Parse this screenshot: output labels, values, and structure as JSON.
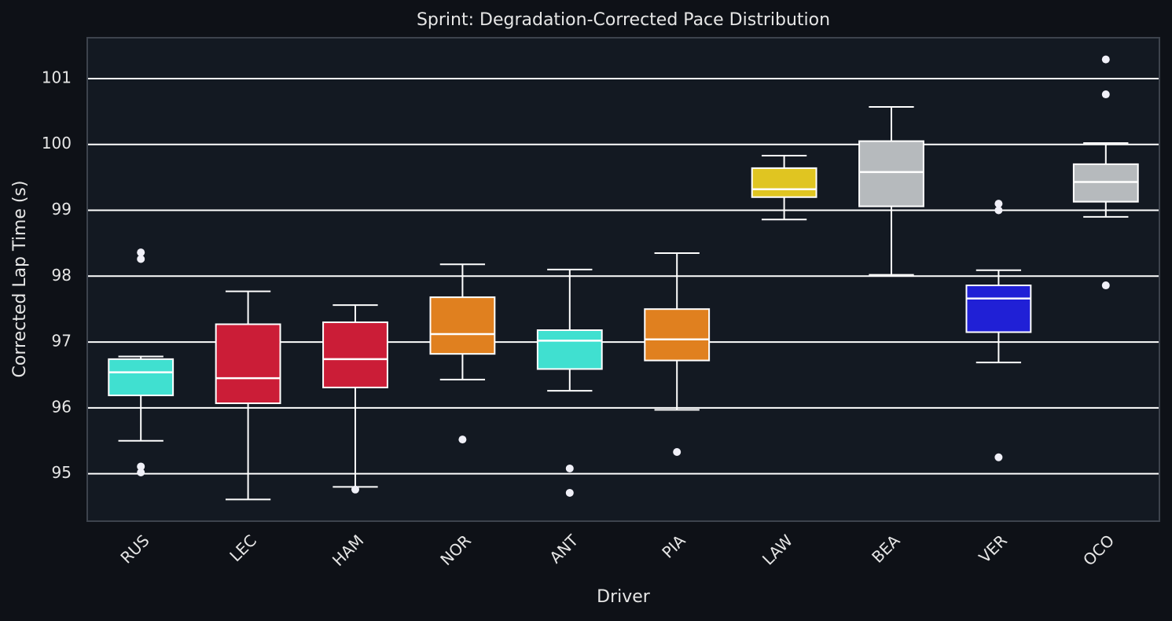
{
  "chart_data": {
    "type": "box",
    "title": "Sprint: Degradation-Corrected Pace Distribution",
    "x_label": "Driver",
    "y_label": "Corrected Lap Time (s)",
    "categories": [
      "RUS",
      "LEC",
      "HAM",
      "NOR",
      "ANT",
      "PIA",
      "LAW",
      "BEA",
      "VER",
      "OCO"
    ],
    "boxes": [
      {
        "whisker_low": 95.5,
        "q1": 96.19,
        "median": 96.54,
        "q3": 96.74,
        "whisker_high": 96.78,
        "outliers": [
          98.36,
          98.26,
          95.11,
          95.02
        ],
        "color": "#40e0d0"
      },
      {
        "whisker_low": 94.61,
        "q1": 96.07,
        "median": 96.45,
        "q3": 97.27,
        "whisker_high": 97.77,
        "outliers": [],
        "color": "#cb1d37"
      },
      {
        "whisker_low": 94.8,
        "q1": 96.31,
        "median": 96.74,
        "q3": 97.3,
        "whisker_high": 97.56,
        "outliers": [
          94.76
        ],
        "color": "#cb1d37"
      },
      {
        "whisker_low": 96.43,
        "q1": 96.82,
        "median": 97.12,
        "q3": 97.68,
        "whisker_high": 98.18,
        "outliers": [
          95.52
        ],
        "color": "#e0801f"
      },
      {
        "whisker_low": 96.26,
        "q1": 96.59,
        "median": 97.02,
        "q3": 97.18,
        "whisker_high": 98.1,
        "outliers": [
          95.08,
          94.71
        ],
        "color": "#40e0d0"
      },
      {
        "whisker_low": 95.97,
        "q1": 96.72,
        "median": 97.04,
        "q3": 97.5,
        "whisker_high": 98.35,
        "outliers": [
          95.33
        ],
        "color": "#e0801f"
      },
      {
        "whisker_low": 98.86,
        "q1": 99.2,
        "median": 99.32,
        "q3": 99.64,
        "whisker_high": 99.83,
        "outliers": [],
        "color": "#e0c521"
      },
      {
        "whisker_low": 98.02,
        "q1": 99.06,
        "median": 99.58,
        "q3": 100.05,
        "whisker_high": 100.57,
        "outliers": [],
        "color": "#b6babd"
      },
      {
        "whisker_low": 96.69,
        "q1": 97.15,
        "median": 97.66,
        "q3": 97.86,
        "whisker_high": 98.09,
        "outliers": [
          99.1,
          99.0,
          95.25
        ],
        "color": "#2020d6"
      },
      {
        "whisker_low": 98.9,
        "q1": 99.13,
        "median": 99.43,
        "q3": 99.7,
        "whisker_high": 100.02,
        "outliers": [
          101.29,
          100.76,
          97.86
        ],
        "color": "#b6babd"
      }
    ],
    "ylim": [
      94.28,
      101.62
    ],
    "yticks": [
      95,
      96,
      97,
      98,
      99,
      100,
      101
    ],
    "grid": true
  }
}
